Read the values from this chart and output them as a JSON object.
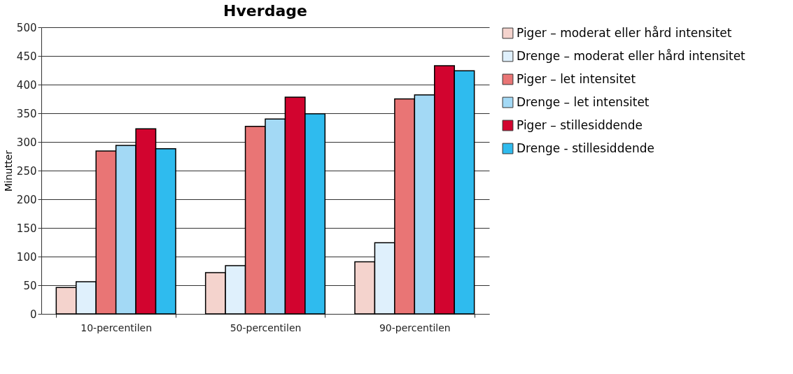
{
  "chart_data": {
    "type": "bar",
    "title": "Hverdage",
    "ylabel": "Minutter",
    "categories": [
      "10-percentilen",
      "50-percentilen",
      "90-percentilen"
    ],
    "series": [
      {
        "name": "Piger – moderat eller hård intensitet",
        "color": "#f4d3cd",
        "values": [
          46,
          72,
          91
        ]
      },
      {
        "name": "Drenge – moderat eller hård intensitet",
        "color": "#dff0fc",
        "values": [
          56,
          84,
          124
        ]
      },
      {
        "name": "Piger – let intensitet",
        "color": "#e97575",
        "values": [
          284,
          327,
          375
        ]
      },
      {
        "name": "Drenge – let intensitet",
        "color": "#a3d9f5",
        "values": [
          294,
          340,
          382
        ]
      },
      {
        "name": "Piger – stillesiddende",
        "color": "#d2042f",
        "values": [
          323,
          378,
          433
        ]
      },
      {
        "name": "Drenge - stillesiddende",
        "color": "#2fbbee",
        "values": [
          288,
          349,
          424
        ]
      }
    ],
    "ylim": [
      0,
      500
    ],
    "yticks": [
      0,
      50,
      100,
      150,
      200,
      250,
      300,
      350,
      400,
      450,
      500
    ],
    "grid": "y",
    "legend": "right"
  }
}
